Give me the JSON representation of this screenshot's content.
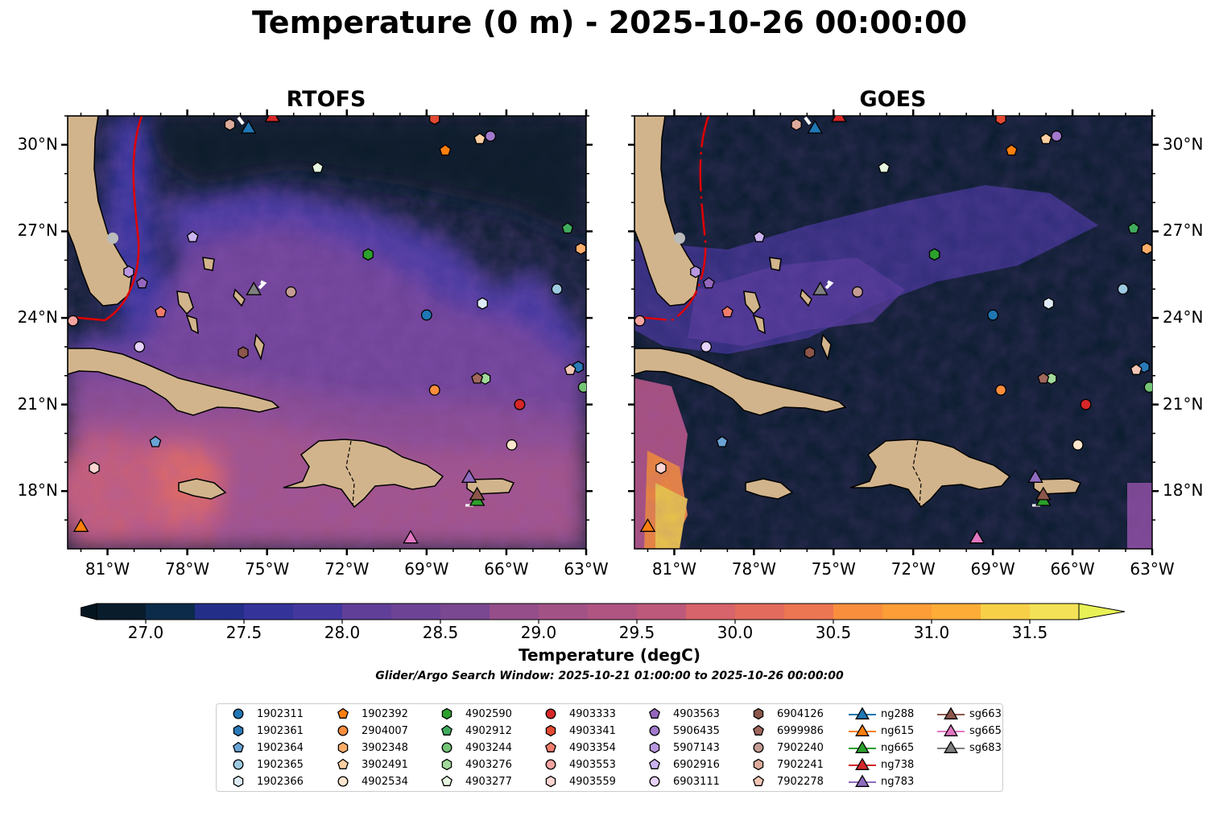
{
  "title": "Temperature (0 m) - 2025-10-26 00:00:00",
  "panels": [
    {
      "title": "RTOFS"
    },
    {
      "title": "GOES"
    }
  ],
  "map_extent": {
    "lon_min": -82.5,
    "lon_max": -63.0,
    "lat_min": 16.0,
    "lat_max": 31.0
  },
  "lon_ticks": [
    {
      "value": -81,
      "label": "81°W"
    },
    {
      "value": -78,
      "label": "78°W"
    },
    {
      "value": -75,
      "label": "75°W"
    },
    {
      "value": -72,
      "label": "72°W"
    },
    {
      "value": -69,
      "label": "69°W"
    },
    {
      "value": -66,
      "label": "66°W"
    },
    {
      "value": -63,
      "label": "63°W"
    }
  ],
  "lat_ticks": [
    {
      "value": 30,
      "label": "30°N"
    },
    {
      "value": 27,
      "label": "27°N"
    },
    {
      "value": 24,
      "label": "24°N"
    },
    {
      "value": 21,
      "label": "21°N"
    },
    {
      "value": 18,
      "label": "18°N"
    }
  ],
  "colorbar": {
    "label": "Temperature (degC)",
    "min": 26.75,
    "max": 31.75,
    "step": 0.25,
    "tick_labels": [
      "27.0",
      "27.5",
      "28.0",
      "28.5",
      "29.0",
      "29.5",
      "30.0",
      "30.5",
      "31.0",
      "31.5"
    ],
    "colors": [
      "#081c2c",
      "#0c2a4a",
      "#162e6a",
      "#232e88",
      "#33339a",
      "#43379e",
      "#523b9c",
      "#603f98",
      "#6d4395",
      "#7a4791",
      "#884b8e",
      "#954e8a",
      "#a35286",
      "#b05581",
      "#bd597b",
      "#c95e74",
      "#d6646a",
      "#e26b5e",
      "#ec7552",
      "#f48147",
      "#f98e3d",
      "#fc9d37",
      "#fdad37",
      "#fcbe3d",
      "#f8d048",
      "#f3e257"
    ],
    "under_color": "#051520",
    "over_color": "#e8f256"
  },
  "search_window": "Glider/Argo Search Window: 2025-10-21 01:00:00 to 2025-10-26 00:00:00",
  "legend": [
    {
      "label": "1902311",
      "shape": "circle",
      "color": "#1f77b4",
      "lon": -69.0,
      "lat": 24.1
    },
    {
      "label": "1902361",
      "shape": "hexagon",
      "color": "#2a7ab8",
      "lon": -63.3,
      "lat": 22.3
    },
    {
      "label": "1902364",
      "shape": "pentagon",
      "color": "#6aa3d5",
      "lon": -79.2,
      "lat": 19.7
    },
    {
      "label": "1902365",
      "shape": "circle",
      "color": "#9ecae1",
      "lon": -64.1,
      "lat": 25.0
    },
    {
      "label": "1902366",
      "shape": "hexagon",
      "color": "#deebf7",
      "lon": -66.9,
      "lat": 24.5
    },
    {
      "label": "1902392",
      "shape": "pentagon",
      "color": "#ff7f0e",
      "lon": -68.3,
      "lat": 29.8
    },
    {
      "label": "2904007",
      "shape": "circle",
      "color": "#fd8d3c",
      "lon": -68.7,
      "lat": 21.5
    },
    {
      "label": "3902348",
      "shape": "hexagon",
      "color": "#fdae6b",
      "lon": -63.2,
      "lat": 26.4
    },
    {
      "label": "3902491",
      "shape": "pentagon",
      "color": "#fdd0a2",
      "lon": -67.0,
      "lat": 30.2
    },
    {
      "label": "4902534",
      "shape": "circle",
      "color": "#fee6ce",
      "lon": -65.8,
      "lat": 19.6
    },
    {
      "label": "4902590",
      "shape": "hexagon",
      "color": "#2ca02c",
      "lon": -71.2,
      "lat": 26.2
    },
    {
      "label": "4902912",
      "shape": "pentagon",
      "color": "#41ab5d",
      "lon": -63.7,
      "lat": 27.1
    },
    {
      "label": "4903244",
      "shape": "circle",
      "color": "#74c476",
      "lon": -63.1,
      "lat": 21.6
    },
    {
      "label": "4903276",
      "shape": "hexagon",
      "color": "#a1d99b",
      "lon": -66.8,
      "lat": 21.9
    },
    {
      "label": "4903277",
      "shape": "pentagon",
      "color": "#e5f5e0",
      "lon": -73.1,
      "lat": 29.2
    },
    {
      "label": "4903333",
      "shape": "circle",
      "color": "#d62728",
      "lon": -65.5,
      "lat": 21.0
    },
    {
      "label": "4903341",
      "shape": "hexagon",
      "color": "#e34a33",
      "lon": -68.7,
      "lat": 30.9
    },
    {
      "label": "4903354",
      "shape": "pentagon",
      "color": "#f07c6c",
      "lon": -79.0,
      "lat": 24.2
    },
    {
      "label": "4903553",
      "shape": "circle",
      "color": "#f4a4a0",
      "lon": -82.3,
      "lat": 23.9
    },
    {
      "label": "4903559",
      "shape": "hexagon",
      "color": "#fcd5d2",
      "lon": -81.5,
      "lat": 18.8
    },
    {
      "label": "4903563",
      "shape": "pentagon",
      "color": "#9467bd",
      "lon": -79.7,
      "lat": 25.2
    },
    {
      "label": "5906435",
      "shape": "circle",
      "color": "#a178cc",
      "lon": -66.6,
      "lat": 30.3
    },
    {
      "label": "5907143",
      "shape": "hexagon",
      "color": "#b897e0",
      "lon": -80.2,
      "lat": 25.6
    },
    {
      "label": "6902916",
      "shape": "pentagon",
      "color": "#cbb4f0",
      "lon": -77.8,
      "lat": 26.8
    },
    {
      "label": "6903111",
      "shape": "circle",
      "color": "#e6d2fa",
      "lon": -79.8,
      "lat": 23.0
    },
    {
      "label": "6904126",
      "shape": "hexagon",
      "color": "#8c564b",
      "lon": -75.9,
      "lat": 22.8
    },
    {
      "label": "6999986",
      "shape": "pentagon",
      "color": "#a0675d",
      "lon": -67.1,
      "lat": 21.9
    },
    {
      "label": "7902240",
      "shape": "circle",
      "color": "#c49c94",
      "lon": -74.1,
      "lat": 24.9
    },
    {
      "label": "7902241",
      "shape": "hexagon",
      "color": "#dcab9c",
      "lon": -76.4,
      "lat": 30.7
    },
    {
      "label": "7902278",
      "shape": "pentagon",
      "color": "#f2c6b6",
      "lon": -63.6,
      "lat": 22.2
    },
    {
      "label": "ng288",
      "shape": "triangle",
      "color": "#1f77b4",
      "lon": -75.7,
      "lat": 30.6
    },
    {
      "label": "ng615",
      "shape": "triangle",
      "color": "#ff7f0e",
      "lon": -82.0,
      "lat": 16.8
    },
    {
      "label": "ng665",
      "shape": "triangle",
      "color": "#2ca02c",
      "lon": -67.1,
      "lat": 17.7
    },
    {
      "label": "ng738",
      "shape": "triangle",
      "color": "#d62728",
      "lon": -74.8,
      "lat": 31.0
    },
    {
      "label": "ng783",
      "shape": "triangle",
      "color": "#8f6bbf",
      "lon": -67.4,
      "lat": 18.5
    },
    {
      "label": "sg663",
      "shape": "triangle",
      "color": "#8c564b",
      "lon": -67.1,
      "lat": 17.9
    },
    {
      "label": "sg665",
      "shape": "triangle",
      "color": "#e377c2",
      "lon": -69.6,
      "lat": 16.4
    },
    {
      "label": "sg683",
      "shape": "triangle",
      "color": "#7f7f7f",
      "lon": -75.5,
      "lat": 25.0
    }
  ]
}
